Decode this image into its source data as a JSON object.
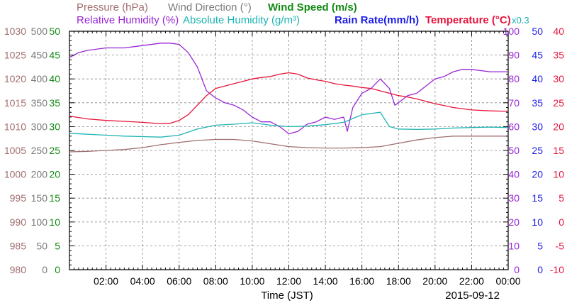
{
  "chart_data": {
    "type": "line",
    "date": "2015-09-12",
    "xlabel": "Time (JST)",
    "x_range_hours": [
      0,
      24
    ],
    "x_ticks": [
      "02:00",
      "04:00",
      "06:00",
      "08:00",
      "10:00",
      "12:00",
      "14:00",
      "16:00",
      "18:00",
      "20:00",
      "22:00",
      "00:00"
    ],
    "grid": true,
    "legend": [
      {
        "text": "Pressure (hPa)",
        "color": "#a06e6e"
      },
      {
        "text": "Wind Direction (°)",
        "color": "#7a7a7a"
      },
      {
        "text": "Wind Speed (m/s)",
        "color": "#138a13"
      },
      {
        "text": "Relative Humidity (%)",
        "color": "#9a26d6"
      },
      {
        "text": "Absolute Humidity (g/m³)",
        "color": "#1fb3b3"
      },
      {
        "text": "Rain Rate(mm/h)",
        "color": "#1e1ee6"
      },
      {
        "text": "Temperature (°C)",
        "color": "#e6143c"
      },
      {
        "text": "x0.3",
        "color": "#1fb3b3"
      }
    ],
    "axes": [
      {
        "name": "pressure",
        "color": "#a06e6e",
        "range": [
          980,
          1030
        ],
        "ticks": [
          "1030",
          "1025",
          "1020",
          "1015",
          "1010",
          "1005",
          "1000",
          "995",
          "990",
          "985",
          "980"
        ]
      },
      {
        "name": "wind-direction",
        "color": "#7a7a7a",
        "range": [
          0,
          500
        ],
        "ticks": [
          "500",
          "450",
          "400",
          "350",
          "300",
          "250",
          "200",
          "150",
          "100",
          "50",
          "0"
        ]
      },
      {
        "name": "wind-speed",
        "color": "#138a13",
        "range": [
          0,
          50
        ],
        "ticks": [
          "50",
          "45",
          "40",
          "35",
          "30",
          "25",
          "20",
          "15",
          "10",
          "5",
          "0"
        ]
      },
      {
        "name": "relative-humidity",
        "color": "#9a26d6",
        "range": [
          0,
          100
        ],
        "ticks": [
          "100",
          "90",
          "80",
          "70",
          "60",
          "50",
          "40",
          "30",
          "20",
          "10",
          "0"
        ]
      },
      {
        "name": "rain-rate",
        "color": "#1e1ee6",
        "range": [
          0,
          50
        ],
        "ticks": [
          "50",
          "45",
          "40",
          "35",
          "30",
          "25",
          "20",
          "15",
          "10",
          "5",
          "0"
        ]
      },
      {
        "name": "temperature",
        "color": "#e6143c",
        "range": [
          -10,
          40
        ],
        "ticks": [
          "40",
          "35",
          "30",
          "25",
          "20",
          "15",
          "10",
          "5",
          "0",
          "-5",
          "-10"
        ]
      }
    ],
    "series": [
      {
        "name": "Pressure (hPa)",
        "color": "#a06e6e",
        "axis": "pressure",
        "x": [
          0,
          1,
          2,
          3,
          4,
          5,
          6,
          7,
          8,
          9,
          10,
          11,
          12,
          13,
          14,
          15,
          16,
          17,
          18,
          19,
          20,
          21,
          22,
          23,
          24
        ],
        "values": [
          1004.7,
          1004.8,
          1005.0,
          1005.2,
          1005.6,
          1006.2,
          1006.7,
          1007.1,
          1007.3,
          1007.3,
          1007.0,
          1006.4,
          1005.8,
          1005.6,
          1005.5,
          1005.5,
          1005.6,
          1005.8,
          1006.5,
          1007.2,
          1007.7,
          1008.0,
          1008.0,
          1008.0,
          1008.0
        ]
      },
      {
        "name": "Relative Humidity (%)",
        "color": "#9a26d6",
        "axis": "relative-humidity",
        "x": [
          0,
          0.5,
          1,
          2,
          3,
          4,
          5,
          5.5,
          6,
          6.5,
          7,
          7.5,
          8,
          8.5,
          9,
          9.5,
          10,
          10.5,
          11,
          11.5,
          12,
          12.5,
          13,
          13.5,
          14,
          14.5,
          15,
          15.2,
          15.5,
          16,
          16.5,
          17,
          17.5,
          17.8,
          18,
          18.5,
          19,
          19.5,
          20,
          20.5,
          21,
          21.5,
          22,
          23,
          24
        ],
        "values": [
          89,
          91,
          92,
          93,
          93,
          94,
          95,
          95,
          94.5,
          91,
          85,
          75,
          72,
          70,
          69,
          67,
          64,
          62,
          62,
          60,
          57,
          58,
          61,
          62,
          64,
          63,
          64,
          58,
          68,
          74,
          76,
          80,
          76,
          69,
          70,
          73,
          74,
          77,
          80,
          81,
          83,
          84,
          84,
          83,
          83
        ]
      },
      {
        "name": "Absolute Humidity (g/m³)",
        "color": "#1fb3b3",
        "axis": "wind-speed",
        "x": [
          0,
          1,
          2,
          3,
          4,
          5,
          6,
          7,
          8,
          9,
          10,
          11,
          12,
          13,
          14,
          15,
          16,
          17,
          17.5,
          18,
          19,
          20,
          21,
          22,
          23,
          24
        ],
        "values": [
          28.6,
          28.4,
          28.2,
          28.0,
          27.9,
          27.8,
          28.2,
          29.5,
          30.3,
          30.5,
          30.8,
          30.3,
          30.0,
          30.1,
          30.4,
          30.9,
          32.5,
          33.0,
          30.0,
          29.5,
          29.4,
          29.5,
          29.7,
          29.8,
          29.9,
          29.8
        ]
      },
      {
        "name": "Temperature (°C)",
        "color": "#e6143c",
        "axis": "temperature",
        "x": [
          0,
          1,
          2,
          3,
          4,
          5,
          5.5,
          6,
          6.5,
          7,
          7.5,
          8,
          8.5,
          9,
          9.5,
          10,
          10.5,
          11,
          11.5,
          12,
          12.5,
          13,
          13.5,
          14,
          14.5,
          15,
          15.5,
          16,
          16.5,
          17,
          17.5,
          18,
          18.5,
          19,
          19.5,
          20,
          20.5,
          21,
          22,
          23,
          24
        ],
        "values": [
          22.2,
          21.6,
          21.3,
          21.1,
          20.9,
          20.6,
          20.7,
          21.3,
          22.5,
          24.5,
          26.5,
          28.0,
          28.5,
          29.0,
          29.5,
          30.0,
          30.3,
          30.5,
          31.0,
          31.3,
          31.0,
          30.2,
          29.8,
          29.5,
          29.0,
          28.7,
          28.5,
          28.2,
          28.0,
          27.5,
          27.0,
          26.5,
          26.2,
          25.8,
          25.3,
          24.8,
          24.4,
          24.0,
          23.5,
          23.3,
          23.2
        ]
      }
    ]
  }
}
